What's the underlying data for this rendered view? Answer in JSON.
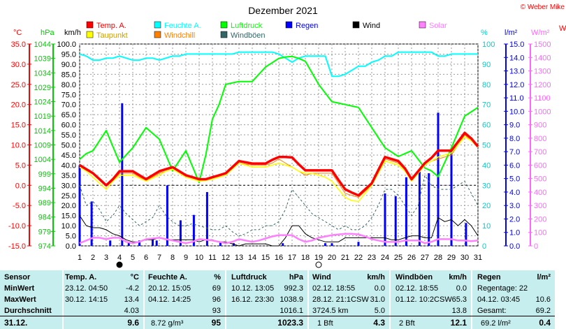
{
  "title": "Dezember 2021",
  "copyright": "© Weber Mike",
  "legend": {
    "row1": [
      {
        "label": "Temp. A.",
        "color": "#ff0000"
      },
      {
        "label": "Feuchte A.",
        "color": "#00ffff"
      },
      {
        "label": "Luftdruck",
        "color": "#00ff00"
      },
      {
        "label": "Regen",
        "color": "#0000ff"
      },
      {
        "label": "Wind",
        "color": "#000000"
      },
      {
        "label": "Solar",
        "color": "#ff80ff"
      }
    ],
    "row2": [
      {
        "label": "Taupunkt",
        "color": "#ffff00"
      },
      {
        "label": "Windchill",
        "color": "#ff8000"
      },
      {
        "label": "Windböen",
        "color": "#336666"
      }
    ]
  },
  "axes": {
    "temp_unit": "°C",
    "pressure_unit": "hPa",
    "wind_unit": "km/h",
    "humidity_unit": "%",
    "rain_unit": "l/m²",
    "solar_unit": "W/m²",
    "temp_ticks": [
      "35.0",
      "30.0",
      "25.0",
      "20.0",
      "15.0",
      "10.0",
      "5.0",
      "0.0",
      "-5.0",
      "-10.0",
      "-15.0"
    ],
    "pressure_ticks": [
      "1044",
      "1039",
      "1034",
      "1029",
      "1024",
      "1019",
      "1014",
      "1009",
      "1004",
      "999",
      "994",
      "989",
      "984",
      "979",
      "974"
    ],
    "wind_ticks": [
      "100.0",
      "95.0",
      "90.0",
      "85.0",
      "80.0",
      "75.0",
      "70.0",
      "65.0",
      "60.0",
      "55.0",
      "50.0",
      "45.0",
      "40.0",
      "35.0",
      "30.0",
      "25.0",
      "20.0",
      "15.0",
      "10.0",
      "5.0",
      "0.0"
    ],
    "humidity_ticks": [
      "100",
      "90",
      "80",
      "70",
      "60",
      "50",
      "40",
      "30",
      "20",
      "10",
      "0"
    ],
    "rain_ticks": [
      "15.0",
      "14.0",
      "13.0",
      "12.0",
      "11.0",
      "10.0",
      "9.0",
      "8.0",
      "7.0",
      "6.0",
      "5.0",
      "4.0",
      "3.0",
      "2.0",
      "1.0",
      "0.0"
    ],
    "solar_ticks": [
      "1500",
      "1400",
      "1300",
      "1200",
      "1100",
      "1000",
      "900",
      "800",
      "700",
      "600",
      "500",
      "400",
      "300",
      "200",
      "100",
      "0"
    ],
    "day_ticks": [
      "1",
      "2",
      "3",
      "4",
      "5",
      "6",
      "7",
      "8",
      "9",
      "10",
      "11",
      "12",
      "13",
      "14",
      "15",
      "16",
      "17",
      "18",
      "19",
      "20",
      "21",
      "22",
      "23",
      "24",
      "25",
      "26",
      "27",
      "28",
      "29",
      "30",
      "31"
    ],
    "right_edge_label": "W"
  },
  "chart_data": {
    "type": "line",
    "x": [
      1,
      1.5,
      2,
      2.5,
      3,
      3.5,
      4,
      4.5,
      5,
      5.5,
      6,
      6.5,
      7,
      7.5,
      8,
      8.5,
      9,
      9.5,
      10,
      10.5,
      11,
      11.5,
      12,
      12.5,
      13,
      13.5,
      14,
      14.5,
      15,
      15.5,
      16,
      16.5,
      17,
      17.5,
      18,
      18.5,
      19,
      19.5,
      20,
      20.5,
      21,
      21.5,
      22,
      22.5,
      23,
      23.5,
      24,
      24.5,
      25,
      25.5,
      26,
      26.5,
      27,
      27.5,
      28,
      28.5,
      29,
      29.5,
      30,
      30.5,
      31
    ],
    "xlim": [
      1,
      31
    ],
    "series": [
      {
        "name": "Temp. A.",
        "axis": "temp",
        "color": "#ff0000",
        "values": [
          5.0,
          4.0,
          3.0,
          1.5,
          0.0,
          1.5,
          3.5,
          3.5,
          3.5,
          2.5,
          1.5,
          2.5,
          3.5,
          4.0,
          4.5,
          3.5,
          2.5,
          2.0,
          1.5,
          1.5,
          2.0,
          2.5,
          3.0,
          4.5,
          6.0,
          5.7,
          5.4,
          5.4,
          5.4,
          6.3,
          7.0,
          7.0,
          6.9,
          5.2,
          3.7,
          3.7,
          3.7,
          3.7,
          3.7,
          1.3,
          -1.0,
          -1.8,
          -2.5,
          -1.0,
          0.5,
          3.8,
          7.0,
          6.5,
          6.0,
          4.2,
          1.5,
          3.5,
          5.5,
          6.8,
          8.6,
          8.6,
          8.6,
          10.8,
          13.0,
          11.6,
          9.6
        ]
      },
      {
        "name": "Taupunkt",
        "axis": "temp",
        "color": "#ffff00",
        "values": [
          4.5,
          3.5,
          2.0,
          0.5,
          -1.0,
          1.0,
          2.5,
          2.5,
          2.5,
          1.8,
          1.0,
          1.8,
          2.5,
          3.5,
          4.0,
          3.0,
          2.0,
          1.5,
          1.0,
          1.2,
          1.5,
          2.0,
          2.5,
          4.0,
          5.5,
          5.0,
          4.5,
          4.5,
          4.5,
          5.0,
          5.5,
          5.0,
          4.5,
          3.5,
          3.0,
          3.0,
          2.5,
          2.0,
          1.0,
          -1.0,
          -3.0,
          -3.8,
          -4.0,
          -2.0,
          0.0,
          3.0,
          6.0,
          5.5,
          5.0,
          3.5,
          1.0,
          3.0,
          5.0,
          6.0,
          7.0,
          7.5,
          8.0,
          10.0,
          12.0,
          11.0,
          9.5
        ]
      },
      {
        "name": "Windchill",
        "axis": "temp",
        "color": "#ff8000",
        "values": [
          4.5,
          3.5,
          2.0,
          0.5,
          -1.0,
          1.0,
          3.0,
          3.0,
          3.0,
          2.0,
          1.0,
          2.0,
          3.0,
          3.5,
          4.0,
          3.0,
          2.0,
          1.5,
          1.0,
          1.2,
          1.5,
          2.0,
          2.5,
          4.0,
          5.5,
          5.2,
          5.0,
          5.0,
          5.0,
          5.5,
          6.5,
          5.5,
          4.5,
          3.5,
          2.5,
          3.0,
          3.0,
          3.0,
          3.0,
          0.5,
          -2.0,
          -2.5,
          -3.0,
          -1.5,
          0.0,
          3.5,
          6.5,
          6.0,
          5.5,
          3.8,
          1.0,
          3.0,
          5.0,
          6.0,
          6.5,
          7.0,
          7.5,
          10.0,
          12.5,
          11.0,
          9.3
        ]
      },
      {
        "name": "Feuchte A.",
        "axis": "humidity",
        "color": "#00ffff",
        "values": [
          95,
          94,
          92,
          92,
          93,
          93,
          94,
          93,
          92,
          92,
          93,
          93,
          92,
          93,
          94,
          94,
          95,
          95,
          95,
          95,
          95,
          95,
          95,
          95,
          96,
          96,
          96,
          96,
          96,
          96,
          95,
          93,
          91,
          93,
          94,
          94,
          94,
          94,
          84,
          84,
          85,
          87,
          89,
          89,
          91,
          92,
          94,
          94,
          96,
          96,
          96,
          96,
          96,
          96,
          94,
          94,
          95,
          95,
          95,
          95,
          95
        ]
      },
      {
        "name": "Luftdruck",
        "axis": "pressure",
        "color": "#00ff00",
        "values": [
          1004,
          1006,
          1007,
          1010.5,
          1014,
          1008.5,
          1003,
          1005.5,
          1008,
          1011.5,
          1015,
          1013,
          1011,
          1005.5,
          1000,
          1003.5,
          1007,
          1001.5,
          996,
          1005.5,
          1018,
          1023,
          1030,
          1030.5,
          1031,
          1031,
          1031,
          1033.5,
          1036,
          1037.5,
          1039,
          1039.5,
          1039.7,
          1039,
          1038,
          1034,
          1030,
          1027,
          1024,
          1023.5,
          1023,
          1022.5,
          1022,
          1018.5,
          1015,
          1011.5,
          1008,
          1006.5,
          1005,
          1006,
          1007,
          1004,
          1001,
          1000,
          998,
          1003,
          1008,
          1013.5,
          1019,
          1020.5,
          1022
        ]
      },
      {
        "name": "Wind",
        "axis": "wind",
        "color": "#000000",
        "values": [
          15,
          10,
          9,
          9,
          8,
          6,
          5,
          3,
          2,
          2,
          3,
          3,
          4,
          3,
          3,
          3,
          3,
          3,
          2,
          3,
          3,
          2,
          2,
          1,
          0,
          1,
          1,
          1,
          1,
          0,
          0,
          4,
          10,
          10,
          6,
          4,
          3,
          2,
          2,
          2,
          4,
          4,
          4,
          4,
          4,
          4,
          4,
          3,
          3,
          4,
          5,
          5,
          4,
          4,
          14,
          12,
          13,
          10,
          13,
          10,
          5
        ]
      },
      {
        "name": "Windböen",
        "axis": "wind",
        "color": "#336666",
        "values": [
          30,
          20,
          22,
          18,
          12,
          15,
          20,
          16,
          13,
          10,
          12,
          14,
          20,
          15,
          12,
          10,
          10,
          11,
          10,
          9,
          8,
          8,
          10,
          7,
          5,
          6,
          8,
          8,
          10,
          10,
          12,
          18,
          28,
          24,
          20,
          16,
          14,
          12,
          10,
          8,
          10,
          8,
          8,
          10,
          14,
          20,
          28,
          28,
          25,
          20,
          15,
          20,
          35,
          30,
          28,
          28,
          28,
          30,
          32,
          26,
          20
        ]
      },
      {
        "name": "Solar",
        "axis": "solar",
        "color": "#ff80ff",
        "values": [
          20,
          40,
          60,
          60,
          50,
          60,
          60,
          30,
          20,
          30,
          50,
          55,
          60,
          50,
          40,
          30,
          20,
          30,
          50,
          45,
          40,
          30,
          20,
          30,
          50,
          40,
          30,
          40,
          55,
          70,
          80,
          80,
          80,
          50,
          30,
          40,
          60,
          70,
          80,
          85,
          90,
          90,
          85,
          70,
          50,
          40,
          30,
          30,
          30,
          40,
          40,
          40,
          20,
          30,
          50,
          50,
          50,
          40,
          40,
          35,
          40
        ]
      }
    ],
    "rain": {
      "name": "Regen",
      "axis": "rain",
      "color": "#0000ff",
      "x": [
        1,
        1.9,
        3.3,
        4.2,
        4.7,
        5.5,
        6.5,
        6.8,
        7.6,
        8.6,
        9.6,
        10.6,
        11.6,
        12.6,
        16.3,
        19.5,
        20,
        22,
        24,
        24.8,
        25.6,
        26.6,
        27.3,
        28,
        29,
        30.1
      ],
      "values": [
        6.0,
        3.3,
        0.4,
        10.6,
        0.3,
        0.4,
        0.5,
        0.4,
        4.5,
        1.9,
        2.3,
        4.0,
        0.3,
        0.2,
        0.2,
        0.2,
        0.2,
        0.3,
        3.9,
        3.7,
        5.1,
        5.5,
        5.4,
        9.9,
        7.2,
        1.7
      ]
    },
    "solar_alt": {
      "name": "Solar",
      "axis": "solar",
      "values": [
        20,
        40,
        60,
        60,
        50,
        60,
        60,
        30,
        20,
        30,
        50,
        55,
        60,
        50,
        40,
        30,
        20,
        30,
        50,
        45,
        40,
        30,
        20,
        30,
        50,
        40,
        30,
        40,
        55,
        70,
        80,
        80,
        80,
        50,
        30,
        40,
        60,
        70,
        80,
        85,
        90,
        90,
        85,
        70,
        50,
        40,
        30,
        30,
        30,
        40,
        40,
        40,
        20,
        30,
        50,
        50,
        50,
        40,
        40,
        35,
        40
      ]
    },
    "ranges": {
      "temp": [
        -15,
        35
      ],
      "pressure": [
        974,
        1044
      ],
      "wind": [
        0,
        100
      ],
      "humidity": [
        0,
        100
      ],
      "rain": [
        0,
        15
      ],
      "solar": [
        0,
        1500
      ]
    },
    "grid": true,
    "moon_markers": [
      {
        "day": 4,
        "phase": "new"
      },
      {
        "day": 19,
        "phase": "full"
      }
    ]
  },
  "table": {
    "sensor": {
      "header": "Sensor",
      "rows": [
        "MinWert",
        "MaxWert",
        "Durchschnitt"
      ],
      "date": "31.12."
    },
    "temp": {
      "header": "Temp. A.",
      "unit": "°C",
      "min_time": "23.12.  04:50",
      "min": "-4.2",
      "max_time": "30.12.  14:15",
      "max": "13.4",
      "avg": "4.03",
      "current": "9.6"
    },
    "humidity": {
      "header": "Feuchte A.",
      "unit": "%",
      "min_time": "20.12.  15:05",
      "min": "69",
      "max_time": "04.12.  14:25",
      "max": "96",
      "avg": "93",
      "abs": "8.72 g/m³",
      "current": "95"
    },
    "pressure": {
      "header": "Luftdruck",
      "unit": "hPa",
      "min_time": "10.12.  13:05",
      "min": "992.3",
      "max_time": "16.12.  23:30",
      "max": "1038.9",
      "avg": "1016.1",
      "current": "1023.3"
    },
    "wind": {
      "header": "Wind",
      "unit": "km/h",
      "min_time": "02.12.  18:55",
      "min": "0.0",
      "max_time": "28.12.  21:1CSW",
      "max": "31.0",
      "dist": "3724.5 km",
      "avg": "5.0",
      "bft": "1 Bft",
      "current": "4.3"
    },
    "gust": {
      "header": "Windböen",
      "unit": "km/h",
      "min_time": "02.12.  18:55",
      "min": "0.0",
      "max_time": "01.12.  10:2CSW",
      "max": "65.3",
      "avg": "13.8",
      "bft": "2 Bft",
      "current": "12.1"
    },
    "rain": {
      "header": "Regen",
      "unit": "l/m²",
      "days": "Regentage: 22",
      "max_time": "04.12.  03:45",
      "max": "10.6",
      "total_label": "Gesamt:",
      "total": "69.2",
      "total2": "69.2 l/m²",
      "current": "0.4"
    }
  }
}
